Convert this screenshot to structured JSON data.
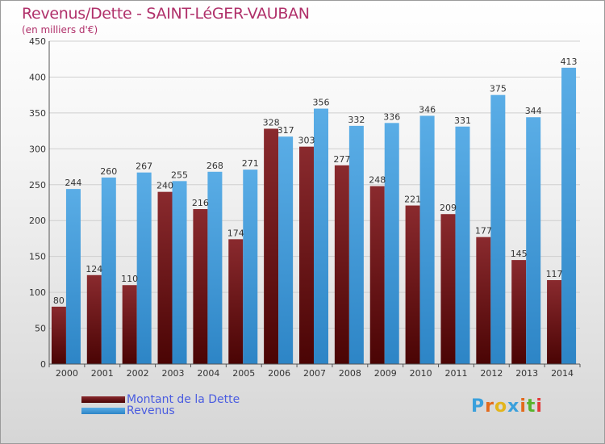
{
  "header": {
    "title": "Revenus/Dette - SAINT-LéGER-VAUBAN",
    "subtitle": "(en milliers d'€)"
  },
  "logo": {
    "text": "Proxiti"
  },
  "colors": {
    "dette_top": "#8a2a2e",
    "dette_bottom": "#4a0404",
    "revenus_top": "#5aade6",
    "revenus_bottom": "#2d85c6"
  },
  "chart_data": {
    "type": "bar",
    "title": "Revenus/Dette - SAINT-LéGER-VAUBAN",
    "xlabel": "",
    "ylabel": "",
    "ylim": [
      0,
      450
    ],
    "yticks": [
      0,
      50,
      100,
      150,
      200,
      250,
      300,
      350,
      400,
      450
    ],
    "grid": true,
    "legend_position": "bottom-left",
    "categories": [
      "2000",
      "2001",
      "2002",
      "2003",
      "2004",
      "2005",
      "2006",
      "2007",
      "2008",
      "2009",
      "2010",
      "2011",
      "2012",
      "2013",
      "2014"
    ],
    "series": [
      {
        "name": "Montant de la Dette",
        "values": [
          80,
          124,
          110,
          240,
          216,
          174,
          328,
          303,
          277,
          248,
          221,
          209,
          177,
          145,
          117
        ]
      },
      {
        "name": "Revenus",
        "values": [
          244,
          260,
          267,
          255,
          268,
          271,
          317,
          356,
          332,
          336,
          346,
          331,
          375,
          344,
          413
        ]
      }
    ]
  }
}
